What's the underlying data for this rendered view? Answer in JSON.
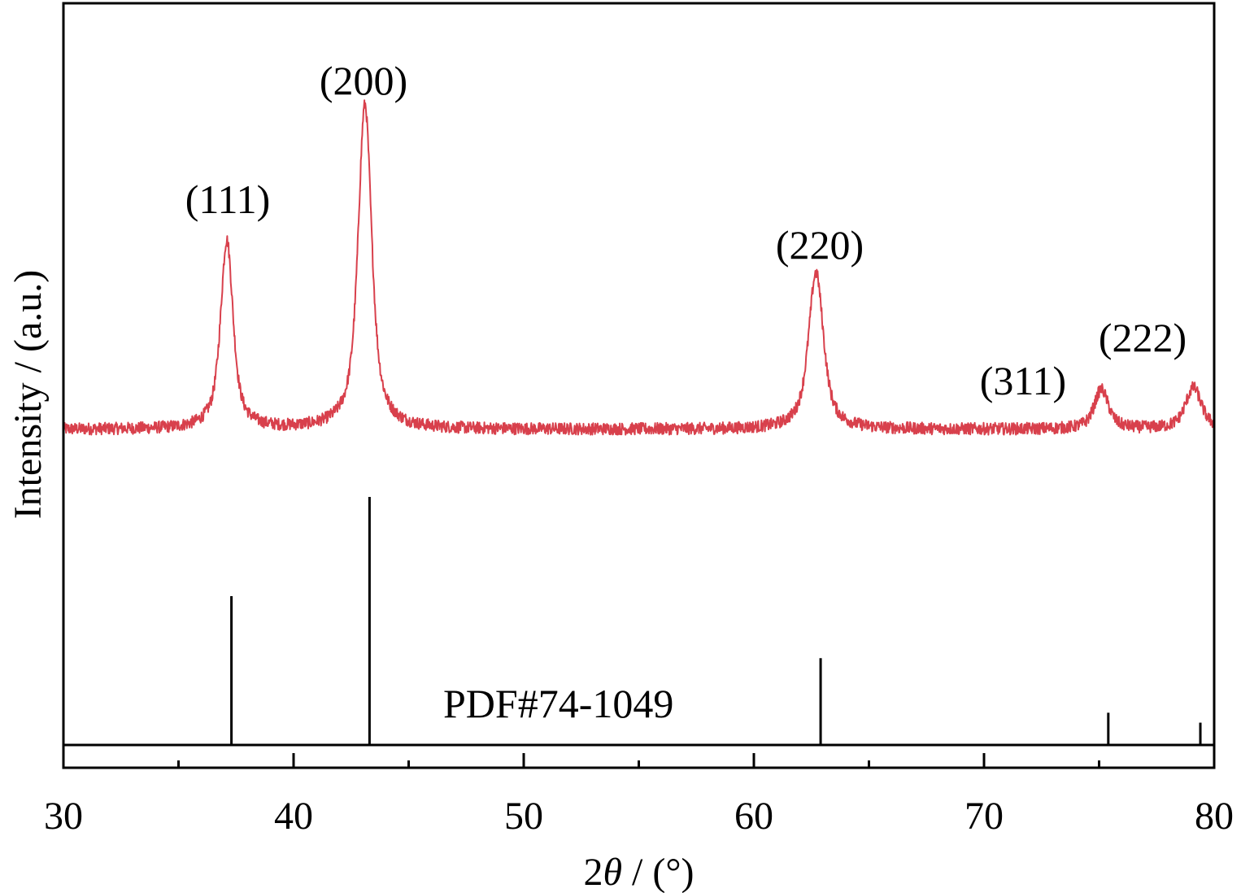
{
  "chart_data": {
    "type": "line",
    "xlabel_prefix": "2",
    "xlabel_symbol": "θ",
    "xlabel_suffix": " / (°)",
    "ylabel": "Intensity / (a.u.)",
    "xlim": [
      30,
      80
    ],
    "x_ticks": [
      30,
      40,
      50,
      60,
      70,
      80
    ],
    "x_tick_labels": [
      "30",
      "40",
      "50",
      "60",
      "70",
      "80"
    ],
    "x_minor_ticks": [
      35,
      45,
      55,
      65,
      75
    ],
    "y_ticks_shown": false,
    "grid": false,
    "series": [
      {
        "color": "#d8404c",
        "baseline": 10,
        "noise": 0.8,
        "peaks": [
          {
            "x": 37.1,
            "height": 100,
            "width": 0.35,
            "label": "(111)"
          },
          {
            "x": 43.1,
            "height": 172,
            "width": 0.38,
            "label": "(200)"
          },
          {
            "x": 62.7,
            "height": 83,
            "width": 0.42,
            "label": "(220)"
          },
          {
            "x": 75.1,
            "height": 21,
            "width": 0.4,
            "label": "(311)"
          },
          {
            "x": 79.1,
            "height": 22,
            "width": 0.45,
            "label": "(222)"
          }
        ]
      }
    ],
    "reference": {
      "label": "PDF#74-1049",
      "color": "#000000",
      "lines": [
        {
          "x": 37.3,
          "intensity": 60
        },
        {
          "x": 43.3,
          "intensity": 100
        },
        {
          "x": 62.9,
          "intensity": 35
        },
        {
          "x": 75.4,
          "intensity": 13
        },
        {
          "x": 79.4,
          "intensity": 9
        }
      ]
    }
  }
}
